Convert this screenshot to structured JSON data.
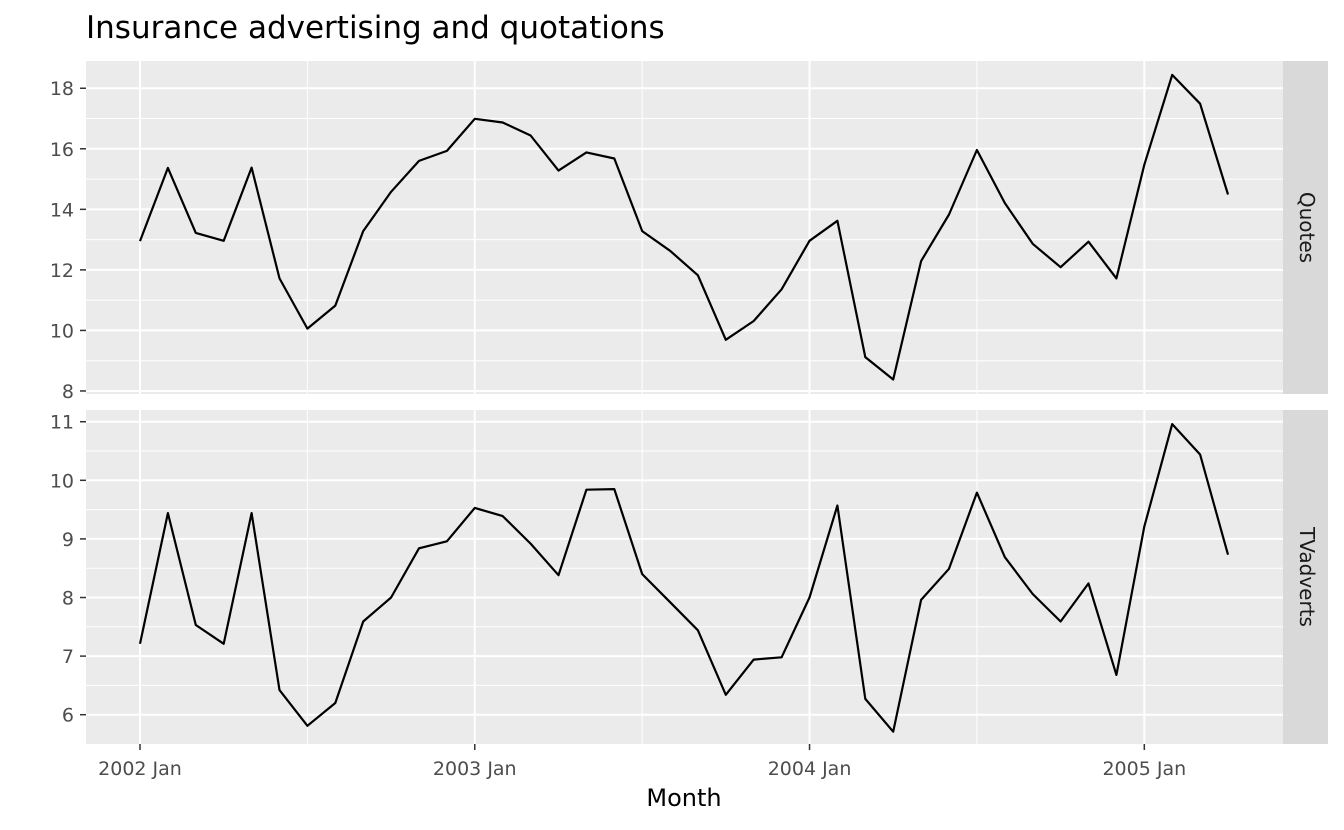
{
  "chart_data": {
    "type": "line",
    "title": "Insurance advertising and quotations",
    "xlabel": "Month",
    "ylabel": "",
    "x_ticks": [
      "2002 Jan",
      "2003 Jan",
      "2004 Jan",
      "2005 Jan"
    ],
    "x": [
      "2002 Jan",
      "2002 Feb",
      "2002 Mar",
      "2002 Apr",
      "2002 May",
      "2002 Jun",
      "2002 Jul",
      "2002 Aug",
      "2002 Sep",
      "2002 Oct",
      "2002 Nov",
      "2002 Dec",
      "2003 Jan",
      "2003 Feb",
      "2003 Mar",
      "2003 Apr",
      "2003 May",
      "2003 Jun",
      "2003 Jul",
      "2003 Aug",
      "2003 Sep",
      "2003 Oct",
      "2003 Nov",
      "2003 Dec",
      "2004 Jan",
      "2004 Feb",
      "2004 Mar",
      "2004 Apr",
      "2004 May",
      "2004 Jun",
      "2004 Jul",
      "2004 Aug",
      "2004 Sep",
      "2004 Oct",
      "2004 Nov",
      "2004 Dec",
      "2005 Jan",
      "2005 Feb",
      "2005 Mar",
      "2005 Apr"
    ],
    "grid": true,
    "panels": [
      {
        "name": "Quotes",
        "ylim": [
          7.9,
          18.9
        ],
        "yticks": [
          8,
          10,
          12,
          14,
          16,
          18
        ],
        "values": [
          12.95,
          15.37,
          13.22,
          12.96,
          15.38,
          11.72,
          10.06,
          10.82,
          13.28,
          14.58,
          15.6,
          15.93,
          16.99,
          16.87,
          16.44,
          15.28,
          15.88,
          15.68,
          13.28,
          12.63,
          11.82,
          9.69,
          10.31,
          11.36,
          12.96,
          13.62,
          9.12,
          8.38,
          12.29,
          13.83,
          15.96,
          14.21,
          12.86,
          12.09,
          12.93,
          11.72,
          15.47,
          18.44,
          17.49,
          14.49
        ]
      },
      {
        "name": "TVadverts",
        "ylim": [
          5.5,
          11.2
        ],
        "yticks": [
          6,
          7,
          8,
          9,
          10,
          11
        ],
        "values": [
          7.21,
          9.44,
          7.53,
          7.21,
          9.44,
          6.42,
          5.81,
          6.2,
          7.59,
          8.0,
          8.84,
          8.96,
          9.53,
          9.39,
          8.92,
          8.38,
          9.84,
          9.85,
          8.4,
          7.92,
          7.44,
          6.34,
          6.94,
          6.98,
          8.0,
          9.57,
          6.27,
          5.71,
          7.96,
          8.49,
          9.79,
          8.69,
          8.06,
          7.59,
          8.24,
          6.68,
          9.21,
          10.96,
          10.44,
          8.73
        ]
      }
    ]
  }
}
